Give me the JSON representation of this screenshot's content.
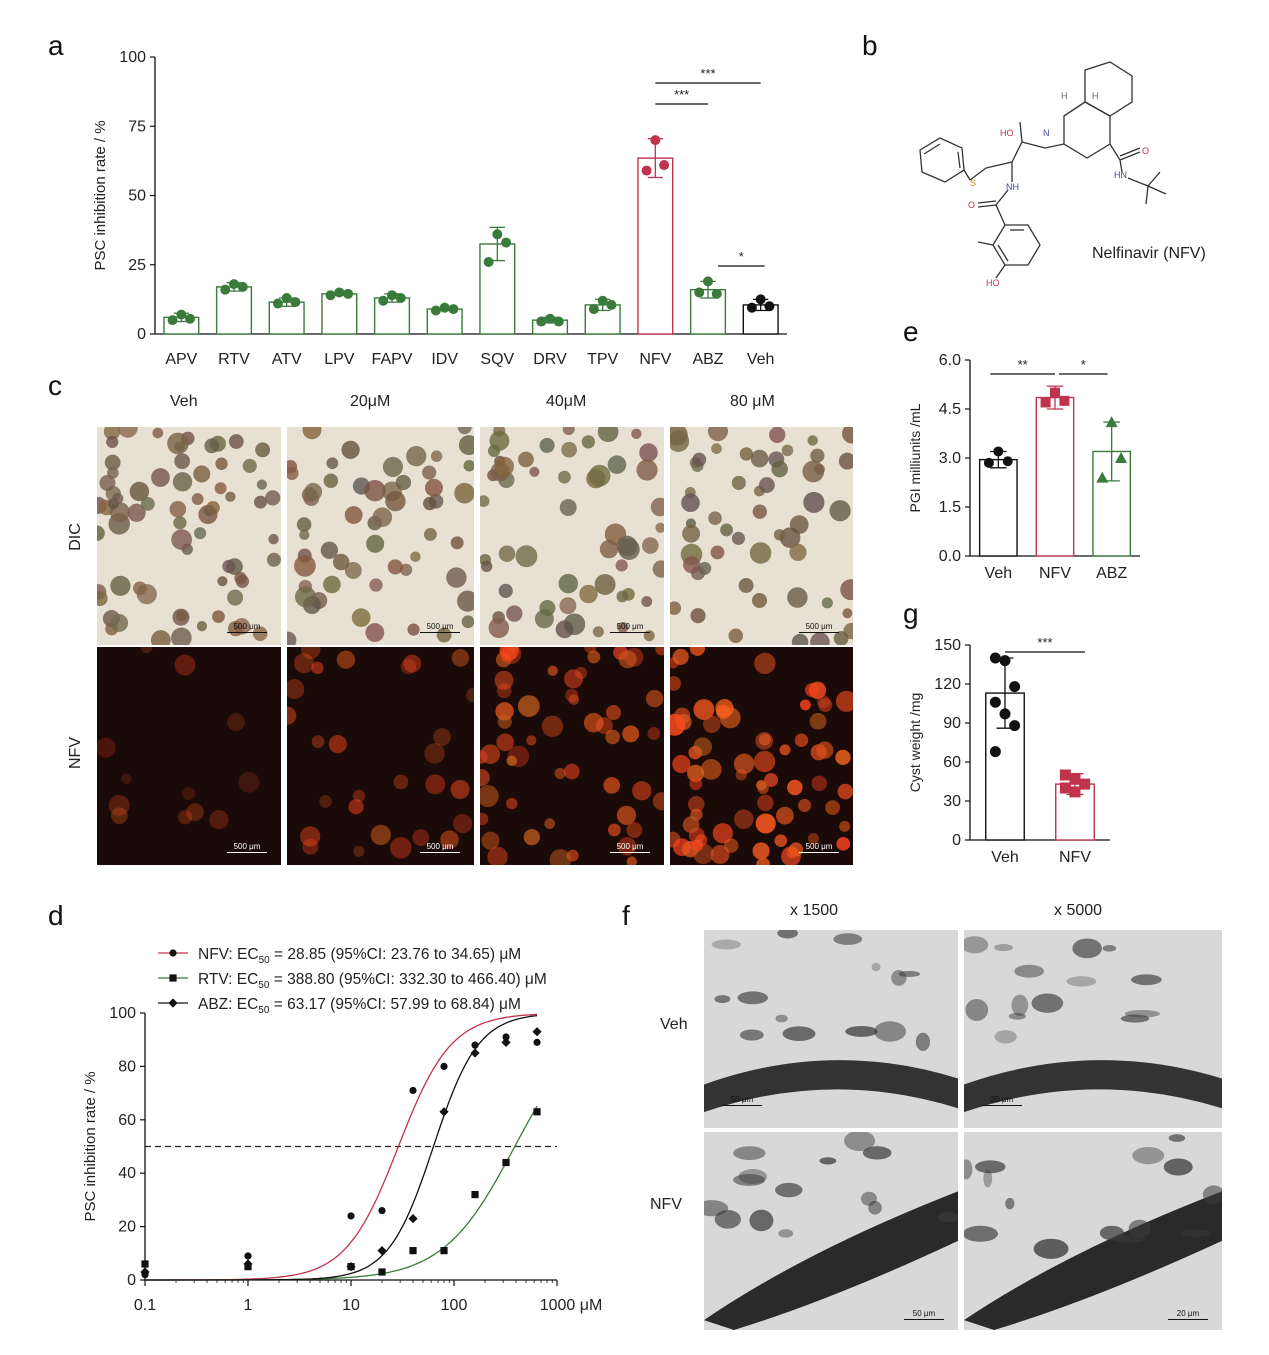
{
  "panels": {
    "a": "a",
    "b": "b",
    "c": "c",
    "d": "d",
    "e": "e",
    "f": "f",
    "g": "g"
  },
  "panel_a": {
    "ylabel": "PSC inhibition rate / %",
    "yticks": [
      "0",
      "25",
      "50",
      "75",
      "100"
    ],
    "sig": [
      "***",
      "***",
      "*"
    ]
  },
  "panel_b": {
    "compound": "Nelfinavir (NFV)",
    "atoms": {
      "HO": "HO",
      "OH": "HO",
      "N1": "N",
      "NH": "NH",
      "HN": "HN",
      "S": "S",
      "O1": "O",
      "O2": "O",
      "H1": "H",
      "H2": "H"
    }
  },
  "panel_c": {
    "columns": [
      "Veh",
      "20μM",
      "40μM",
      "80 μM"
    ],
    "rows": [
      "DIC",
      "NFV"
    ],
    "scalebar": "500 μm"
  },
  "panel_d": {
    "legend": [
      {
        "prefix": "NFV: EC",
        "sub": "50",
        "suffix": " = 28.85 (95%CI: 23.76 to 34.65) μM"
      },
      {
        "prefix": "RTV: EC",
        "sub": "50",
        "suffix": " = 388.80 (95%CI: 332.30 to 466.40) μM"
      },
      {
        "prefix": "ABZ: EC",
        "sub": "50",
        "suffix": " = 63.17 (95%CI: 57.99 to 68.84) μM"
      }
    ],
    "ylabel": "PSC inhibition rate / %",
    "yticks": [
      "0",
      "20",
      "40",
      "60",
      "80",
      "100"
    ],
    "xticks": [
      "0.1",
      "1",
      "10",
      "100",
      "1000 μM"
    ]
  },
  "panel_e": {
    "ylabel": "PGI milliunits /mL",
    "yticks": [
      "0.0",
      "1.5",
      "3.0",
      "4.5",
      "6.0"
    ],
    "sig": [
      "**",
      "*"
    ]
  },
  "panel_f": {
    "columns": [
      "x 1500",
      "x 5000"
    ],
    "rows": [
      "Veh",
      "NFV"
    ],
    "scalebars": [
      "50 μm",
      "20 μm",
      "50 μm",
      "20 μm"
    ]
  },
  "panel_g": {
    "ylabel": "Cyst weight /mg",
    "yticks": [
      "0",
      "30",
      "60",
      "90",
      "120",
      "150"
    ],
    "sig": [
      "***"
    ]
  },
  "colors": {
    "green": "#3a7a3a",
    "red": "#c0334d",
    "black": "#111111",
    "dashed": "#222222",
    "micro_bg": "#e8e0d2",
    "fluor_bg": "#1a0a08"
  },
  "chart_data": [
    {
      "id": "a",
      "type": "bar",
      "categories": [
        "APV",
        "RTV",
        "ATV",
        "LPV",
        "FAPV",
        "IDV",
        "SQV",
        "DRV",
        "TPV",
        "NFV",
        "ABZ",
        "Veh"
      ],
      "values": [
        6,
        17,
        11.5,
        14.5,
        13,
        9,
        32.5,
        5,
        10.5,
        63.5,
        16,
        10.5
      ],
      "errors": [
        1.5,
        1.5,
        1.5,
        0.5,
        1.5,
        0.5,
        6,
        1,
        2,
        7,
        3,
        2
      ],
      "points": [
        [
          7,
          5,
          5.5
        ],
        [
          18,
          16,
          17
        ],
        [
          13,
          11,
          11.5
        ],
        [
          15,
          14,
          14.5
        ],
        [
          14,
          12,
          13
        ],
        [
          9.5,
          8.5,
          9
        ],
        [
          36,
          26,
          33
        ],
        [
          5.5,
          4.5,
          4.5
        ],
        [
          12,
          9,
          10.5
        ],
        [
          70,
          59,
          61
        ],
        [
          19,
          15,
          14.5
        ],
        [
          12.5,
          9.5,
          10
        ]
      ],
      "ylabel": "PSC inhibition rate / %",
      "ylim": [
        0,
        100
      ]
    },
    {
      "id": "d",
      "type": "line",
      "xscale": "log",
      "xlim": [
        0.1,
        1000
      ],
      "ylim": [
        0,
        100
      ],
      "threshold": 50,
      "series": [
        {
          "name": "NFV",
          "ec50": 28.85,
          "hill": 1.7,
          "points": [
            [
              0.1,
              2
            ],
            [
              1,
              9
            ],
            [
              10,
              24
            ],
            [
              20,
              26
            ],
            [
              40,
              71
            ],
            [
              80,
              80
            ],
            [
              160,
              88
            ],
            [
              320,
              91
            ],
            [
              640,
              89
            ]
          ]
        },
        {
          "name": "RTV",
          "ec50": 388.8,
          "hill": 1.25,
          "points": [
            [
              0.1,
              6
            ],
            [
              1,
              5
            ],
            [
              10,
              5
            ],
            [
              20,
              3
            ],
            [
              40,
              11
            ],
            [
              80,
              11
            ],
            [
              160,
              32
            ],
            [
              320,
              44
            ],
            [
              640,
              63
            ]
          ]
        },
        {
          "name": "ABZ",
          "ec50": 63.17,
          "hill": 2.0,
          "points": [
            [
              0.1,
              3
            ],
            [
              1,
              6
            ],
            [
              10,
              5
            ],
            [
              20,
              11
            ],
            [
              40,
              23
            ],
            [
              80,
              63
            ],
            [
              160,
              85
            ],
            [
              320,
              89
            ],
            [
              640,
              93
            ]
          ]
        }
      ],
      "ylabel": "PSC inhibition rate / %"
    },
    {
      "id": "e",
      "type": "bar",
      "categories": [
        "Veh",
        "NFV",
        "ABZ"
      ],
      "values": [
        2.95,
        4.85,
        3.2
      ],
      "errors": [
        0.25,
        0.35,
        0.9
      ],
      "points": [
        [
          3.2,
          2.85,
          2.9
        ],
        [
          5.0,
          4.7,
          4.75
        ],
        [
          4.1,
          2.4,
          3.0
        ]
      ],
      "ylabel": "PGI milliunits /mL",
      "ylim": [
        0,
        6
      ]
    },
    {
      "id": "g",
      "type": "bar",
      "categories": [
        "Veh",
        "NFV"
      ],
      "values": [
        113,
        43
      ],
      "errors": [
        27,
        8
      ],
      "points": [
        [
          140,
          138,
          118,
          106,
          97,
          88,
          68
        ],
        [
          50,
          47,
          43,
          40,
          37
        ]
      ],
      "ylabel": "Cyst weight /mg",
      "ylim": [
        0,
        150
      ]
    }
  ]
}
